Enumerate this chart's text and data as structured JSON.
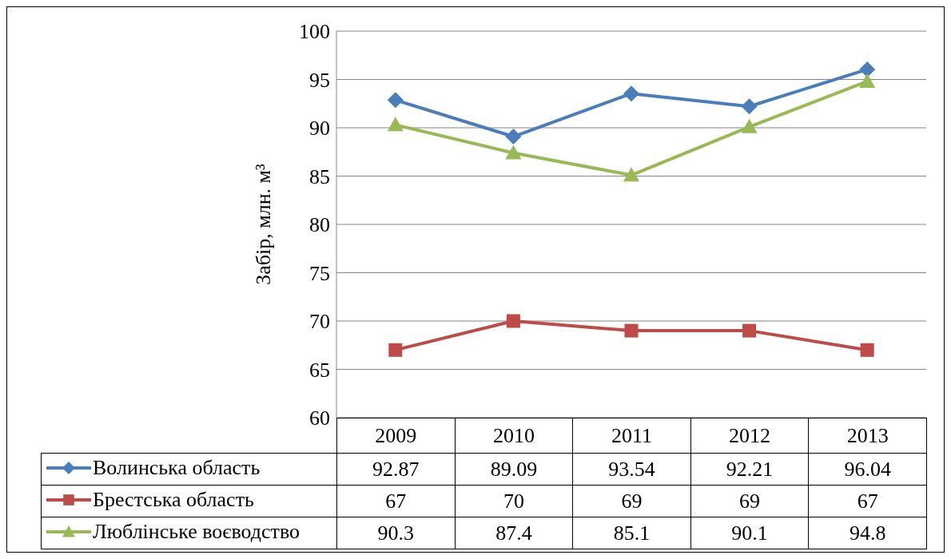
{
  "chart_data": {
    "type": "line",
    "ylabel": "Забір, млн. м³",
    "categories": [
      "2009",
      "2010",
      "2011",
      "2012",
      "2013"
    ],
    "ylim": [
      60,
      100
    ],
    "yticks": [
      60,
      65,
      70,
      75,
      80,
      85,
      90,
      95,
      100
    ],
    "grid": "y",
    "legend": "bottom",
    "data_labels": true,
    "series": [
      {
        "name": "Волинська область",
        "color": "#4a7ebb",
        "marker": "diamond",
        "values": [
          92.87,
          89.09,
          93.54,
          92.21,
          96.04
        ]
      },
      {
        "name": "Брестська область",
        "color": "#be4b48",
        "marker": "square",
        "values": [
          67,
          70,
          69,
          69,
          67
        ]
      },
      {
        "name": "Люблінське воєводство",
        "color": "#98b954",
        "marker": "triangle",
        "values": [
          90.3,
          87.4,
          85.1,
          90.1,
          94.8
        ]
      }
    ]
  }
}
